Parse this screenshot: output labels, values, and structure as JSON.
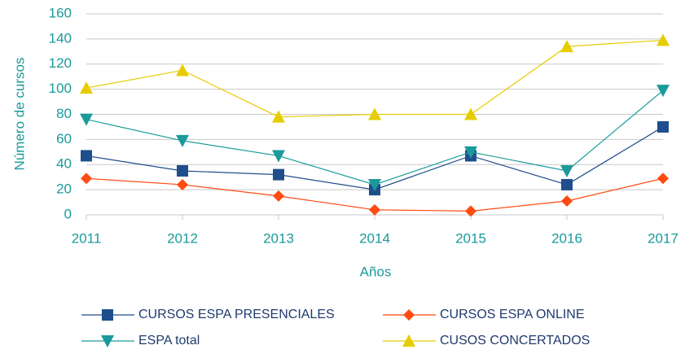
{
  "chart_data": {
    "type": "line",
    "categories": [
      "2011",
      "2012",
      "2013",
      "2014",
      "2015",
      "2016",
      "2017"
    ],
    "xlabel": "Años",
    "ylabel": "Número de cursos",
    "ylim": [
      0,
      160
    ],
    "yticks": [
      0,
      20,
      40,
      60,
      80,
      100,
      120,
      140,
      160
    ],
    "grid": true,
    "legend": "bottom",
    "series": [
      {
        "name": "CURSOS ESPA PRESENCIALES",
        "color": "#1f4e8c",
        "marker": "square",
        "values": [
          47,
          35,
          32,
          20,
          47,
          24,
          70
        ]
      },
      {
        "name": "CURSOS ESPA ONLINE",
        "color": "#ff4a12",
        "marker": "diamond",
        "values": [
          29,
          24,
          15,
          4,
          3,
          11,
          29
        ]
      },
      {
        "name": "ESPA total",
        "color": "#1a9a9a",
        "marker": "triangle-down",
        "values": [
          76,
          59,
          47,
          24,
          50,
          35,
          99
        ]
      },
      {
        "name": "CUSOS CONCERTADOS",
        "color": "#e6cc00",
        "marker": "triangle-up",
        "values": [
          101,
          115,
          78,
          80,
          80,
          134,
          139
        ]
      }
    ]
  }
}
